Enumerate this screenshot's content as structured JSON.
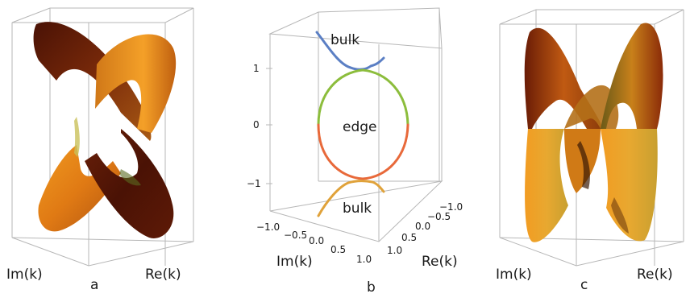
{
  "panels": [
    {
      "letter": "a",
      "x_axis": "Re(k)",
      "y_axis": "Im(k)"
    },
    {
      "letter": "b",
      "x_axis": "Re(k)",
      "y_axis": "Im(k)",
      "labels": {
        "bulk_top": "bulk",
        "edge": "edge",
        "bulk_bottom": "bulk"
      },
      "vertical_ticks": [
        "1",
        "0",
        "−1"
      ],
      "im_ticks": [
        "−1.0",
        "−0.5",
        "0.0",
        "0.5",
        "1.0"
      ],
      "re_ticks": [
        "−1.0",
        "−0.5",
        "0.0",
        "0.5",
        "1.0"
      ]
    },
    {
      "letter": "c",
      "x_axis": "Re(k)",
      "y_axis": "Im(k)"
    }
  ],
  "colors": {
    "bulk_top": "#5b7fc4",
    "edge_top": "#8cbd3c",
    "edge_bottom": "#e8693a",
    "bulk_bottom": "#e0a23a",
    "surface_dark": "#5a1a08",
    "surface_light": "#f0a020"
  }
}
